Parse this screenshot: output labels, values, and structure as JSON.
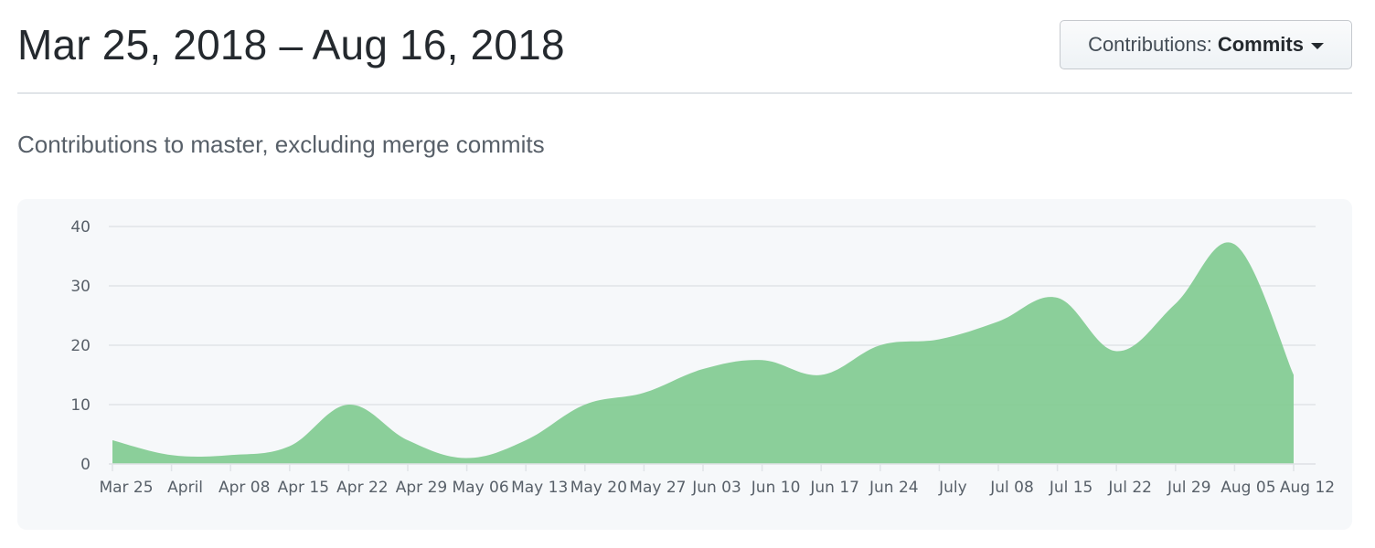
{
  "header": {
    "date_range": "Mar 25, 2018 – Aug 16, 2018",
    "contributions_button": {
      "prefix": "Contributions:",
      "value": "Commits",
      "icon": "caret-down-icon"
    }
  },
  "subtitle": "Contributions to master, excluding merge commits",
  "colors": {
    "area_fill": "#7fca8f",
    "grid": "#e1e4e8",
    "tick_text": "#586069"
  },
  "chart_data": {
    "type": "area",
    "x_axis_type": "date",
    "x_tick_labels": [
      "Mar 25",
      "April",
      "Apr 08",
      "Apr 15",
      "Apr 22",
      "Apr 29",
      "May 06",
      "May 13",
      "May 20",
      "May 27",
      "Jun 03",
      "Jun 10",
      "Jun 17",
      "Jun 24",
      "July",
      "Jul 08",
      "Jul 15",
      "Jul 22",
      "Jul 29",
      "Aug 05",
      "Aug 12"
    ],
    "x_tick_dates": [
      "2018-03-25",
      "2018-04-01",
      "2018-04-08",
      "2018-04-15",
      "2018-04-22",
      "2018-04-29",
      "2018-05-06",
      "2018-05-13",
      "2018-05-20",
      "2018-05-27",
      "2018-06-03",
      "2018-06-10",
      "2018-06-17",
      "2018-06-24",
      "2018-07-01",
      "2018-07-08",
      "2018-07-15",
      "2018-07-22",
      "2018-07-29",
      "2018-08-05",
      "2018-08-12"
    ],
    "y_ticks": [
      0,
      10,
      20,
      30,
      40
    ],
    "ylim": [
      0,
      40
    ],
    "grid": true,
    "series": [
      {
        "x": [
          "2018-03-25",
          "2018-04-01",
          "2018-04-08",
          "2018-04-15",
          "2018-04-22",
          "2018-04-29",
          "2018-05-06",
          "2018-05-13",
          "2018-05-20",
          "2018-05-27",
          "2018-06-03",
          "2018-06-10",
          "2018-06-17",
          "2018-06-24",
          "2018-07-01",
          "2018-07-08",
          "2018-07-15",
          "2018-07-22",
          "2018-07-29",
          "2018-08-05",
          "2018-08-12"
        ],
        "values": [
          4,
          1.5,
          1.5,
          3,
          10,
          4,
          1,
          4,
          10,
          12,
          16,
          17.5,
          15,
          20,
          21,
          24,
          28,
          19,
          27,
          37,
          15
        ]
      }
    ]
  }
}
